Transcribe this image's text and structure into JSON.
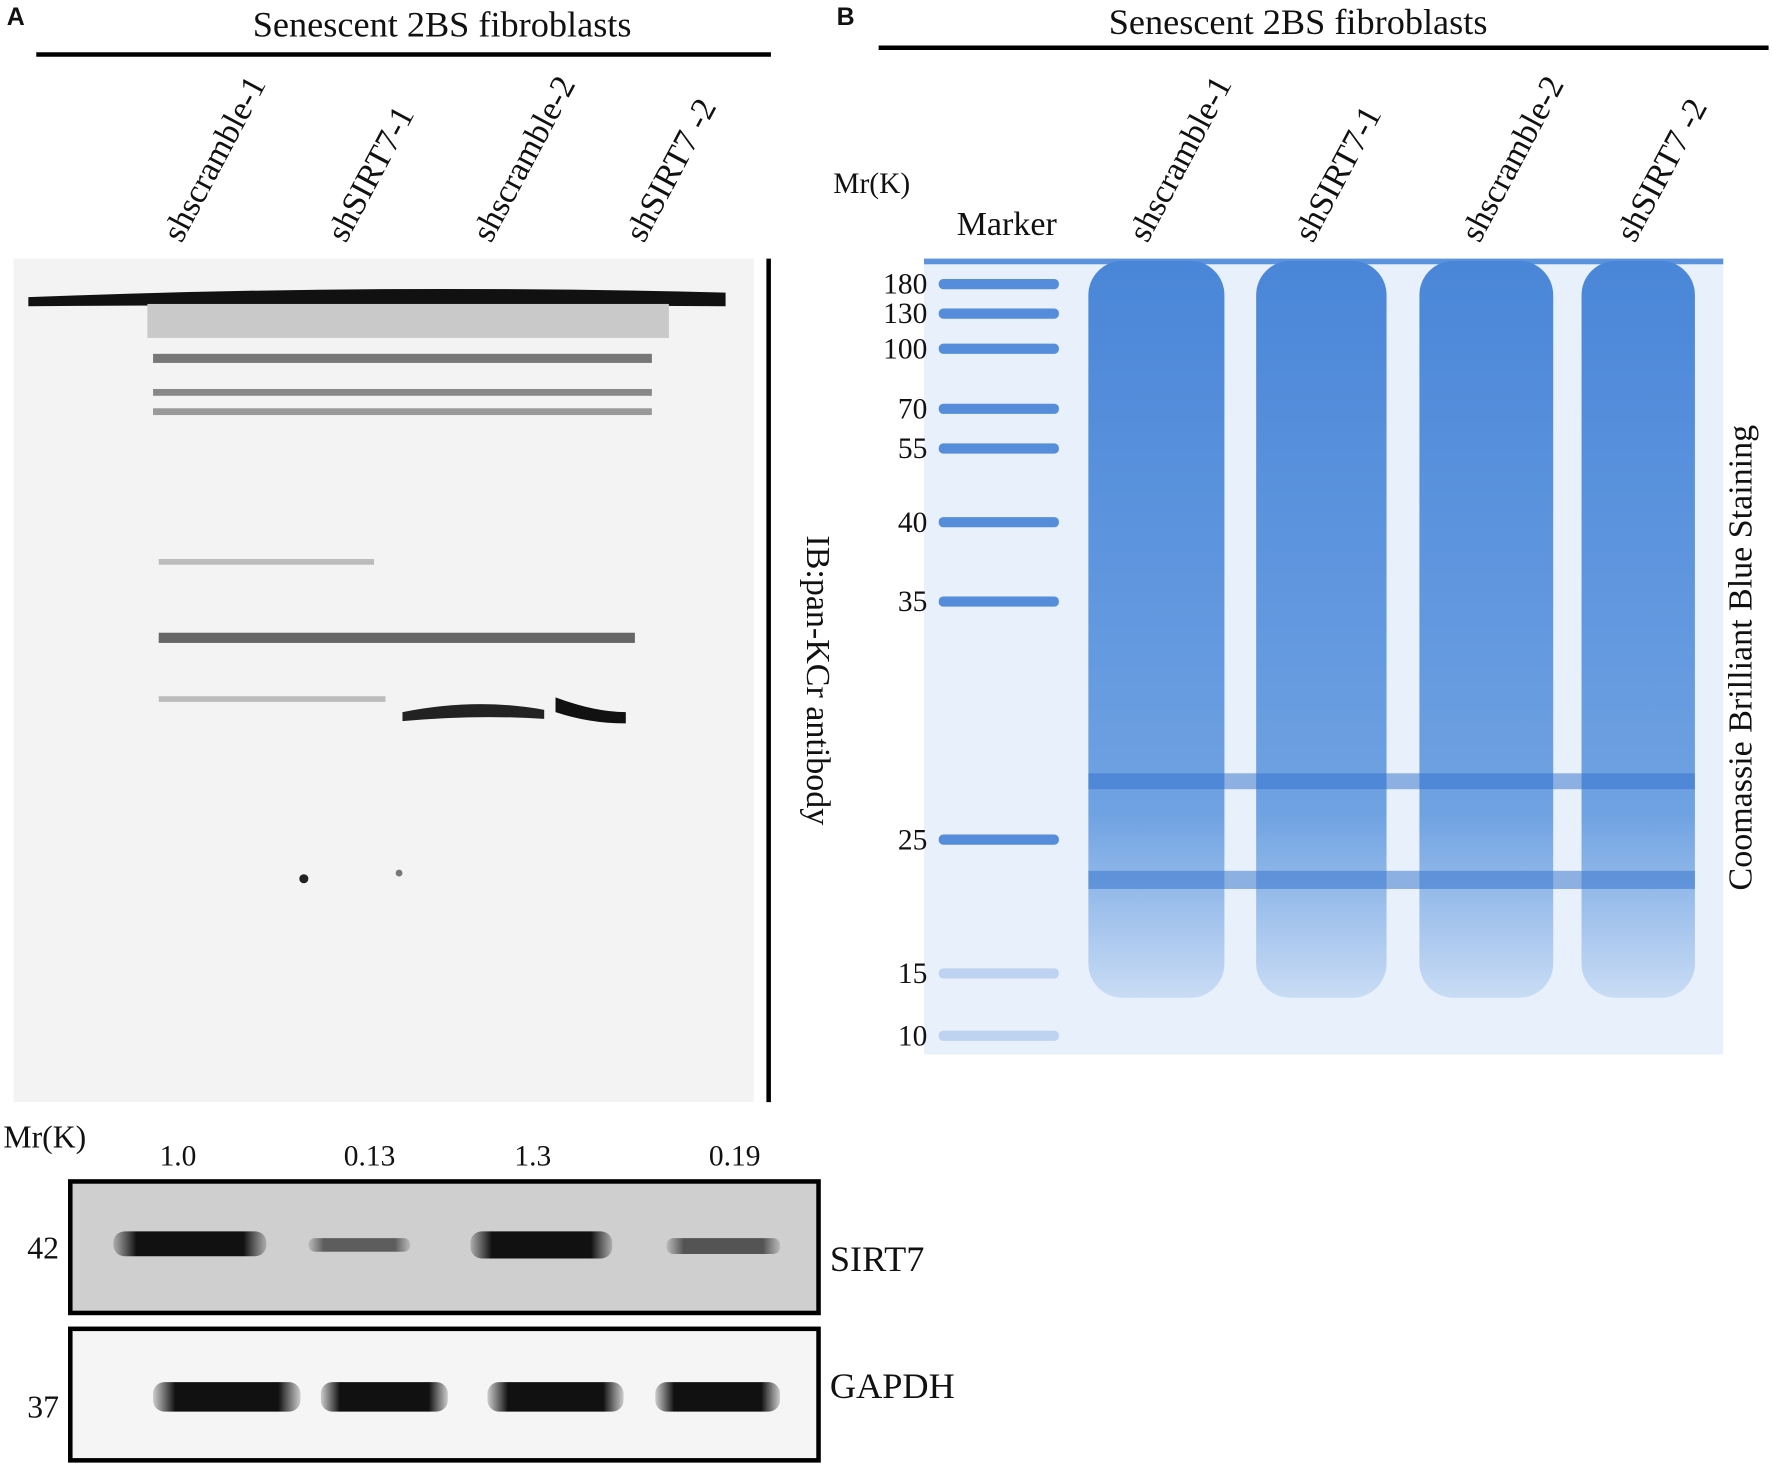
{
  "panel_a": {
    "label": "A",
    "header": "Senescent 2BS fibroblasts",
    "lanes": [
      "shscramble-1",
      "shSIRT7-1",
      "shscramble-2",
      "shSIRT7 -2"
    ],
    "blot_label": "IB:pan-KCr antibody",
    "mr_label": "Mr(K)",
    "quantification": [
      "1.0",
      "0.13",
      "1.3",
      "0.19"
    ],
    "rows": [
      {
        "marker": "42",
        "label": "SIRT7"
      },
      {
        "marker": "37",
        "label": "GAPDH"
      }
    ]
  },
  "panel_b": {
    "label": "B",
    "header": "Senescent 2BS fibroblasts",
    "mr_label": "Mr(K)",
    "lanes": [
      "Marker",
      "shscramble-1",
      "shSIRT7-1",
      "shscramble-2",
      "shSIRT7 -2"
    ],
    "markers": [
      "180",
      "130",
      "100",
      "70",
      "55",
      "40",
      "35",
      "25",
      "15",
      "10"
    ],
    "side_label": "Coomassie Brilliant Blue Staining"
  }
}
